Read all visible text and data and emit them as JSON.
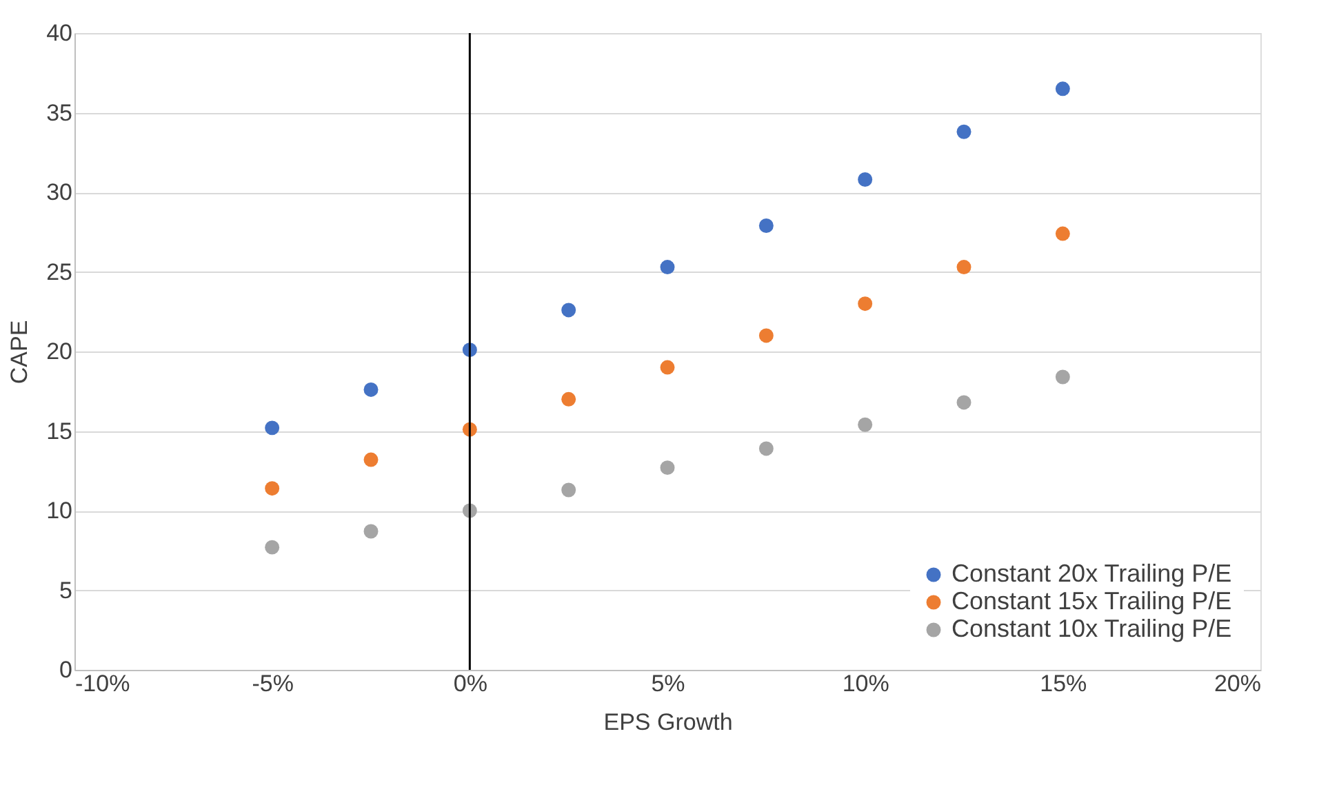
{
  "chart_data": {
    "type": "scatter",
    "xlabel": "EPS Growth",
    "ylabel": "CAPE",
    "x": [
      -5,
      -2.5,
      0,
      2.5,
      5,
      7.5,
      10,
      12.5,
      15
    ],
    "series": [
      {
        "name": "Constant 20x Trailing P/E",
        "color": "#4472c4",
        "values": [
          15.2,
          17.6,
          20.1,
          22.6,
          25.3,
          27.9,
          30.8,
          33.8,
          36.5
        ]
      },
      {
        "name": "Constant 15x Trailing P/E",
        "color": "#ed7d31",
        "values": [
          11.4,
          13.2,
          15.1,
          17.0,
          19.0,
          21.0,
          23.0,
          25.3,
          27.4
        ]
      },
      {
        "name": "Constant 10x Trailing P/E",
        "color": "#a5a5a5",
        "values": [
          7.7,
          8.7,
          10.0,
          11.3,
          12.7,
          13.9,
          15.4,
          16.8,
          18.4
        ]
      }
    ],
    "xlim": [
      -10,
      20
    ],
    "xticks": [
      {
        "value": -10,
        "label": "-10%"
      },
      {
        "value": -5,
        "label": "-5%"
      },
      {
        "value": 0,
        "label": "0%"
      },
      {
        "value": 5,
        "label": "5%"
      },
      {
        "value": 10,
        "label": "10%"
      },
      {
        "value": 15,
        "label": "15%"
      },
      {
        "value": 20,
        "label": "20%"
      }
    ],
    "ylim": [
      0,
      40
    ],
    "yticks": [
      0,
      5,
      10,
      15,
      20,
      25,
      30,
      35,
      40
    ],
    "ref_lines": [
      {
        "axis": "x",
        "value": 0,
        "color": "#000000"
      }
    ],
    "grid": "y",
    "legend": "bottom right",
    "marker": "circle"
  }
}
